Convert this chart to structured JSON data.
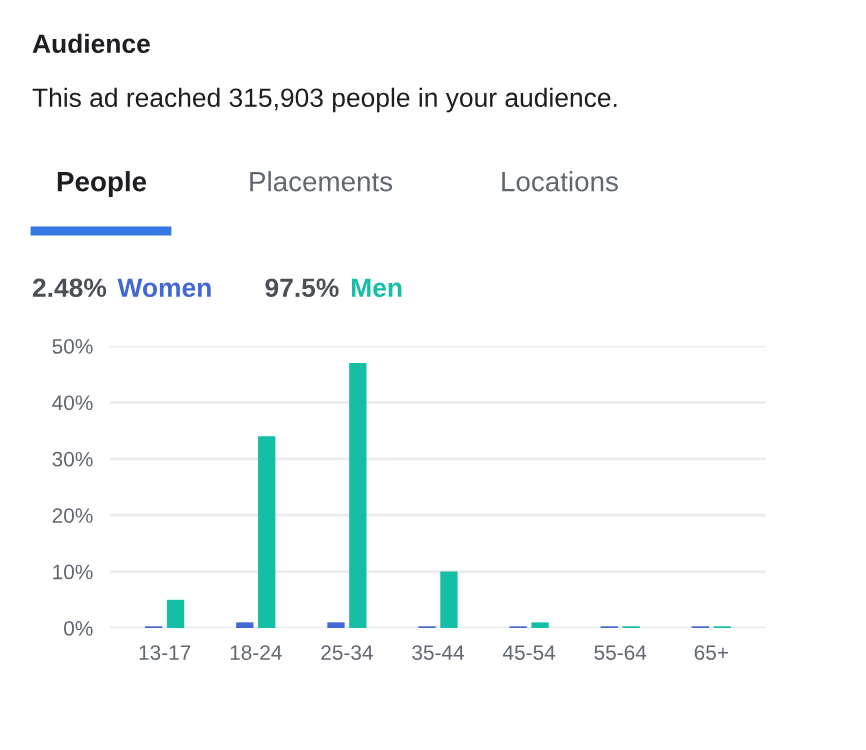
{
  "chart_data": {
    "type": "bar",
    "title": "Audience",
    "subtitle": "This ad reached 315,903 people in your audience.",
    "annotations": [
      "People",
      "Placements",
      "Locations",
      "2.48%",
      "97.5%"
    ],
    "categories": [
      "13-17",
      "18-24",
      "25-34",
      "35-44",
      "45-54",
      "55-64",
      "65+"
    ],
    "series": [
      {
        "name": "Women",
        "color": "#4267d6",
        "values": [
          0.3,
          1,
          1,
          0.3,
          0.3,
          0.3,
          0.3
        ]
      },
      {
        "name": "Men",
        "color": "#14bfa6",
        "values": [
          5,
          34,
          47,
          10,
          1,
          0.3,
          0.3
        ]
      }
    ],
    "ylim": [
      0,
      50
    ],
    "yticks": [
      {
        "value": 0,
        "label": "0%"
      },
      {
        "value": 10,
        "label": "10%"
      },
      {
        "value": 20,
        "label": "20%"
      },
      {
        "value": 30,
        "label": "30%"
      },
      {
        "value": 40,
        "label": "40%"
      },
      {
        "value": 50,
        "label": "50%"
      }
    ],
    "grid": "y",
    "legend": "top left"
  }
}
